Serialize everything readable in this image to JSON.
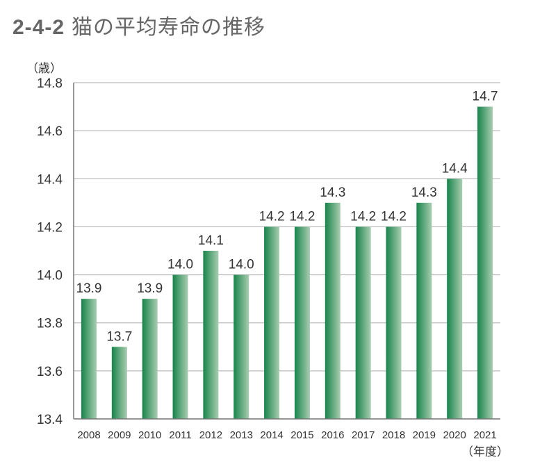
{
  "title_number": "2-4-2",
  "title_text": "猫の平均寿命の推移",
  "chart_data": {
    "type": "bar",
    "title": "2-4-2 猫の平均寿命の推移",
    "ylabel": "（歳）",
    "xlabel": "（年度）",
    "categories": [
      "2008",
      "2009",
      "2010",
      "2011",
      "2012",
      "2013",
      "2014",
      "2015",
      "2016",
      "2017",
      "2018",
      "2019",
      "2020",
      "2021"
    ],
    "values": [
      13.9,
      13.7,
      13.9,
      14.0,
      14.1,
      14.0,
      14.2,
      14.2,
      14.3,
      14.2,
      14.2,
      14.3,
      14.4,
      14.7
    ],
    "data_labels": [
      "13.9",
      "13.7",
      "13.9",
      "14.0",
      "14.1",
      "14.0",
      "14.2",
      "14.2",
      "14.3",
      "14.2",
      "14.2",
      "14.3",
      "14.4",
      "14.7"
    ],
    "ylim": [
      13.4,
      14.8
    ],
    "yticks": [
      "13.4",
      "13.6",
      "13.8",
      "14.0",
      "14.2",
      "14.4",
      "14.6",
      "14.8"
    ],
    "grid": true,
    "legend": "none",
    "bar_color_dark": "#17844a",
    "bar_color_light": "#a9cdb1"
  }
}
